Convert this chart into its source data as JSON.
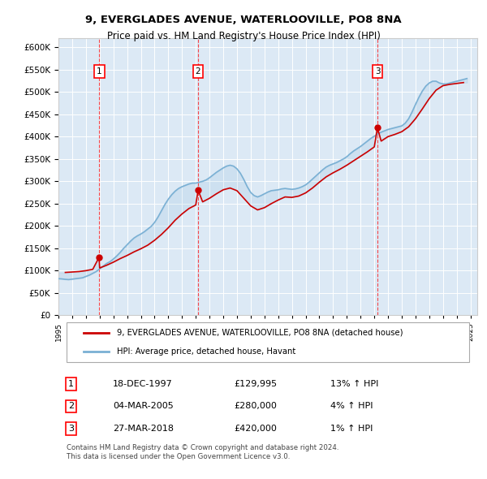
{
  "title": "9, EVERGLADES AVENUE, WATERLOOVILLE, PO8 8NA",
  "subtitle": "Price paid vs. HM Land Registry's House Price Index (HPI)",
  "background_color": "#dce9f5",
  "plot_bg_color": "#dce9f5",
  "ylim": [
    0,
    620000
  ],
  "yticks": [
    0,
    50000,
    100000,
    150000,
    200000,
    250000,
    300000,
    350000,
    400000,
    450000,
    500000,
    550000,
    600000
  ],
  "xlim_start": 1995.0,
  "xlim_end": 2025.5,
  "xtick_years": [
    1995,
    1996,
    1997,
    1998,
    1999,
    2000,
    2001,
    2002,
    2003,
    2004,
    2005,
    2006,
    2007,
    2008,
    2009,
    2010,
    2011,
    2012,
    2013,
    2014,
    2015,
    2016,
    2017,
    2018,
    2019,
    2020,
    2021,
    2022,
    2023,
    2024,
    2025
  ],
  "sale_dates": [
    1997.96,
    2005.17,
    2018.23
  ],
  "sale_prices": [
    129995,
    280000,
    420000
  ],
  "sale_labels": [
    "1",
    "2",
    "3"
  ],
  "red_line_color": "#cc0000",
  "blue_line_color": "#7ab0d4",
  "legend_text_red": "9, EVERGLADES AVENUE, WATERLOOVILLE, PO8 8NA (detached house)",
  "legend_text_blue": "HPI: Average price, detached house, Havant",
  "table_rows": [
    {
      "num": "1",
      "date": "18-DEC-1997",
      "price": "£129,995",
      "hpi": "13% ↑ HPI"
    },
    {
      "num": "2",
      "date": "04-MAR-2005",
      "price": "£280,000",
      "hpi": "4% ↑ HPI"
    },
    {
      "num": "3",
      "date": "27-MAR-2018",
      "price": "£420,000",
      "hpi": "1% ↑ HPI"
    }
  ],
  "footer": "Contains HM Land Registry data © Crown copyright and database right 2024.\nThis data is licensed under the Open Government Licence v3.0.",
  "hpi_data_x": [
    1995.0,
    1995.25,
    1995.5,
    1995.75,
    1996.0,
    1996.25,
    1996.5,
    1996.75,
    1997.0,
    1997.25,
    1997.5,
    1997.75,
    1998.0,
    1998.25,
    1998.5,
    1998.75,
    1999.0,
    1999.25,
    1999.5,
    1999.75,
    2000.0,
    2000.25,
    2000.5,
    2000.75,
    2001.0,
    2001.25,
    2001.5,
    2001.75,
    2002.0,
    2002.25,
    2002.5,
    2002.75,
    2003.0,
    2003.25,
    2003.5,
    2003.75,
    2004.0,
    2004.25,
    2004.5,
    2004.75,
    2005.0,
    2005.25,
    2005.5,
    2005.75,
    2006.0,
    2006.25,
    2006.5,
    2006.75,
    2007.0,
    2007.25,
    2007.5,
    2007.75,
    2008.0,
    2008.25,
    2008.5,
    2008.75,
    2009.0,
    2009.25,
    2009.5,
    2009.75,
    2010.0,
    2010.25,
    2010.5,
    2010.75,
    2011.0,
    2011.25,
    2011.5,
    2011.75,
    2012.0,
    2012.25,
    2012.5,
    2012.75,
    2013.0,
    2013.25,
    2013.5,
    2013.75,
    2014.0,
    2014.25,
    2014.5,
    2014.75,
    2015.0,
    2015.25,
    2015.5,
    2015.75,
    2016.0,
    2016.25,
    2016.5,
    2016.75,
    2017.0,
    2017.25,
    2017.5,
    2017.75,
    2018.0,
    2018.25,
    2018.5,
    2018.75,
    2019.0,
    2019.25,
    2019.5,
    2019.75,
    2020.0,
    2020.25,
    2020.5,
    2020.75,
    2021.0,
    2021.25,
    2021.5,
    2021.75,
    2022.0,
    2022.25,
    2022.5,
    2022.75,
    2023.0,
    2023.25,
    2023.5,
    2023.75,
    2024.0,
    2024.25,
    2024.5,
    2024.75
  ],
  "hpi_data_y": [
    82000,
    81500,
    80500,
    80000,
    81000,
    82000,
    83000,
    84000,
    87000,
    90000,
    94000,
    98000,
    104000,
    110000,
    116000,
    120000,
    126000,
    133000,
    141000,
    150000,
    158000,
    166000,
    173000,
    178000,
    182000,
    187000,
    193000,
    199000,
    208000,
    220000,
    234000,
    248000,
    260000,
    270000,
    278000,
    284000,
    288000,
    291000,
    294000,
    296000,
    296000,
    298000,
    300000,
    303000,
    308000,
    314000,
    320000,
    325000,
    330000,
    334000,
    336000,
    334000,
    328000,
    318000,
    304000,
    288000,
    275000,
    268000,
    265000,
    268000,
    272000,
    276000,
    279000,
    280000,
    281000,
    283000,
    284000,
    283000,
    282000,
    283000,
    285000,
    288000,
    292000,
    298000,
    305000,
    312000,
    319000,
    326000,
    332000,
    336000,
    339000,
    342000,
    346000,
    350000,
    355000,
    362000,
    368000,
    373000,
    378000,
    384000,
    390000,
    396000,
    401000,
    406000,
    410000,
    413000,
    416000,
    418000,
    420000,
    422000,
    424000,
    430000,
    440000,
    455000,
    472000,
    488000,
    502000,
    513000,
    520000,
    524000,
    524000,
    520000,
    518000,
    518000,
    520000,
    522000,
    524000,
    526000,
    528000,
    530000
  ],
  "property_data_x": [
    1995.5,
    1996.0,
    1996.5,
    1997.0,
    1997.5,
    1997.96,
    1998.0,
    1998.5,
    1999.0,
    1999.5,
    2000.0,
    2000.5,
    2001.0,
    2001.5,
    2002.0,
    2002.5,
    2003.0,
    2003.5,
    2004.0,
    2004.5,
    2005.0,
    2005.17,
    2005.5,
    2006.0,
    2006.5,
    2007.0,
    2007.5,
    2008.0,
    2008.5,
    2009.0,
    2009.5,
    2010.0,
    2010.5,
    2011.0,
    2011.5,
    2012.0,
    2012.5,
    2013.0,
    2013.5,
    2014.0,
    2014.5,
    2015.0,
    2015.5,
    2016.0,
    2016.5,
    2017.0,
    2017.5,
    2018.0,
    2018.23,
    2018.5,
    2019.0,
    2019.5,
    2020.0,
    2020.5,
    2021.0,
    2021.5,
    2022.0,
    2022.5,
    2023.0,
    2023.5,
    2024.0,
    2024.5
  ],
  "property_data_y": [
    96000,
    97000,
    98000,
    100000,
    103000,
    129995,
    106000,
    112000,
    119000,
    127000,
    134000,
    142000,
    149000,
    157000,
    168000,
    181000,
    196000,
    213000,
    227000,
    239000,
    247000,
    280000,
    254000,
    262000,
    272000,
    281000,
    285000,
    279000,
    262000,
    245000,
    236000,
    241000,
    250000,
    258000,
    265000,
    264000,
    267000,
    274000,
    285000,
    298000,
    310000,
    319000,
    327000,
    336000,
    346000,
    356000,
    366000,
    377000,
    420000,
    390000,
    400000,
    405000,
    411000,
    422000,
    440000,
    462000,
    485000,
    504000,
    514000,
    517000,
    519000,
    521000
  ]
}
